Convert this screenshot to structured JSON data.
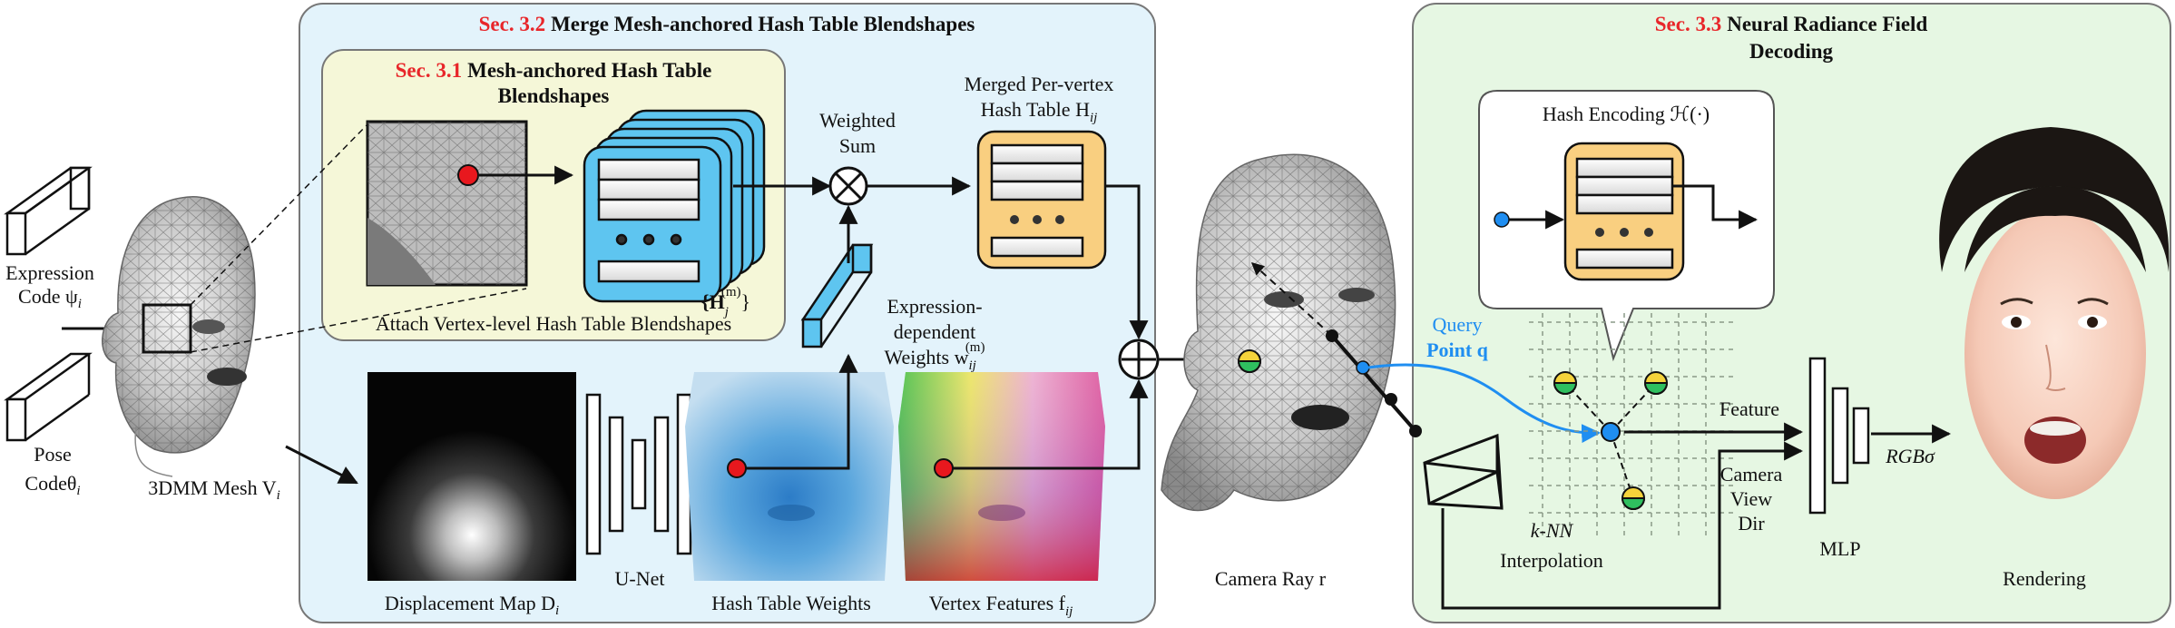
{
  "sections": {
    "s32": {
      "ref": "Sec. 3.2",
      "title": "Merge Mesh-anchored Hash Table Blendshapes"
    },
    "s31": {
      "ref": "Sec. 3.1",
      "title_line1": "Mesh-anchored Hash Table",
      "title_line2": "Blendshapes"
    },
    "s33": {
      "ref": "Sec. 3.3",
      "title_line1": "Neural Radiance Field",
      "title_line2": "Decoding"
    }
  },
  "inputs": {
    "expression_line1": "Expression",
    "expression_line2": "Code ψ",
    "expression_sub": "i",
    "pose_line1": "Pose",
    "pose_line2": "Codeθ",
    "pose_sub": "i"
  },
  "mesh": {
    "label": "3DMM Mesh V",
    "sub": "i"
  },
  "blendshapes": {
    "table_set_label": "{H",
    "table_set_sup": "(m)",
    "table_set_sub": "j",
    "attach_label": "Attach Vertex-level Hash Table Blendshapes"
  },
  "merge": {
    "weighted_sum_line1": "Weighted",
    "weighted_sum_line2": "Sum",
    "merged_line1": "Merged Per-vertex",
    "merged_line2": "Hash Table H",
    "merged_sub": "ij",
    "weights_line1": "Expression-",
    "weights_line2": "dependent",
    "weights_line3": "Weights w",
    "weights_sup": "(m)",
    "weights_sub": "ij"
  },
  "maps": {
    "displacement": "Displacement Map D",
    "displacement_sub": "i",
    "unet": "U-Net",
    "hash_weights": "Hash Table Weights",
    "vertex_features": "Vertex Features f",
    "vertex_features_sub": "ij"
  },
  "ray": {
    "label": "Camera Ray r",
    "query_line1": "Query",
    "query_line2": "Point q"
  },
  "decoding": {
    "hash_encoding": "Hash Encoding ℋ(·)",
    "knn_line1": "k-NN",
    "knn_line2": "Interpolation",
    "feature": "Feature",
    "camera_line1": "Camera",
    "camera_line2": "View",
    "camera_line3": "Dir",
    "mlp": "MLP",
    "output": "RGBσ"
  },
  "rendering": {
    "label": "Rendering"
  },
  "colors": {
    "sec32_bg": "#e3f3fb",
    "sec31_bg": "#f5f7d8",
    "sec33_bg": "#e6f7e3",
    "hash_table_fill": "#f9cf80",
    "blendshape_fill": "#5ec5f0",
    "query_blue": "#1f8ef1",
    "anchor_red": "#e8181e",
    "section_ref_red": "#e8262a"
  }
}
